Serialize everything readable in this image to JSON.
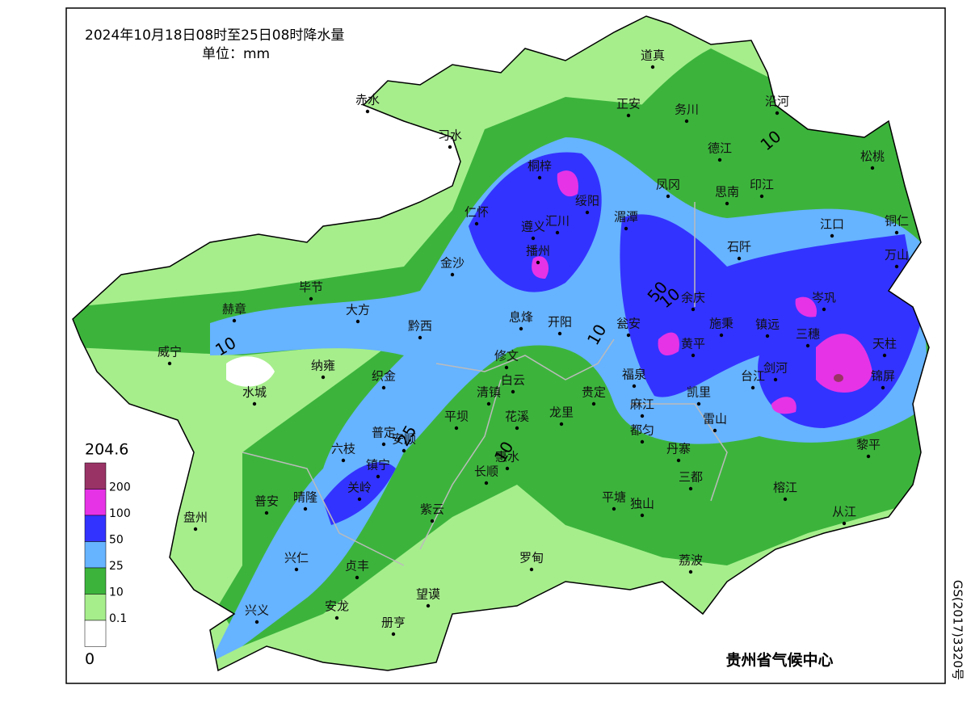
{
  "title": "2024年10月18日08时至25日08时降水量",
  "unit": "单位：mm",
  "legend": {
    "max": 204.6,
    "min": 0,
    "below_color": "#ffffff",
    "levels": [
      {
        "label": 200,
        "color": "#993366"
      },
      {
        "label": 100,
        "color": "#e633e6"
      },
      {
        "label": 50,
        "color": "#3333ff"
      },
      {
        "label": 25,
        "color": "#66b3ff"
      },
      {
        "label": 10,
        "color": "#3cb43c"
      },
      {
        "label": 0.1,
        "color": "#a6ee8c"
      }
    ]
  },
  "cities": [
    "道真",
    "赤水",
    "沿河",
    "正安",
    "务川",
    "习水",
    "德江",
    "松桃",
    "桐梓",
    "凤冈",
    "印江",
    "思南",
    "绥阳",
    "仁怀",
    "湄潭",
    "遵义",
    "汇川",
    "江口",
    "铜仁",
    "播州",
    "石阡",
    "万山",
    "金沙",
    "毕节",
    "余庆",
    "岑巩",
    "赫章",
    "大方",
    "息烽",
    "开阳",
    "施秉",
    "镇远",
    "黔西",
    "三穗",
    "瓮安",
    "天柱",
    "威宁",
    "修文",
    "黄平",
    "纳雍",
    "织金",
    "白云",
    "福泉",
    "台江",
    "剑河",
    "锦屏",
    "水城",
    "清镇",
    "贵定",
    "凯里",
    "平坝",
    "花溪",
    "龙里",
    "麻江",
    "雷山",
    "普定",
    "安顺",
    "都匀",
    "六枝",
    "丹寨",
    "黎平",
    "惠水",
    "镇宁",
    "长顺",
    "三都",
    "关岭",
    "榕江",
    "晴隆",
    "平塘",
    "独山",
    "紫云",
    "普安",
    "盘州",
    "从江",
    "兴仁",
    "罗甸",
    "荔波",
    "贞丰",
    "望谟",
    "安龙",
    "兴义",
    "册亨"
  ],
  "contour_labels": [
    10,
    10,
    10,
    10,
    10,
    25,
    50
  ],
  "credit": "贵州省气候中心",
  "map_number": "GS(2017)3320号"
}
